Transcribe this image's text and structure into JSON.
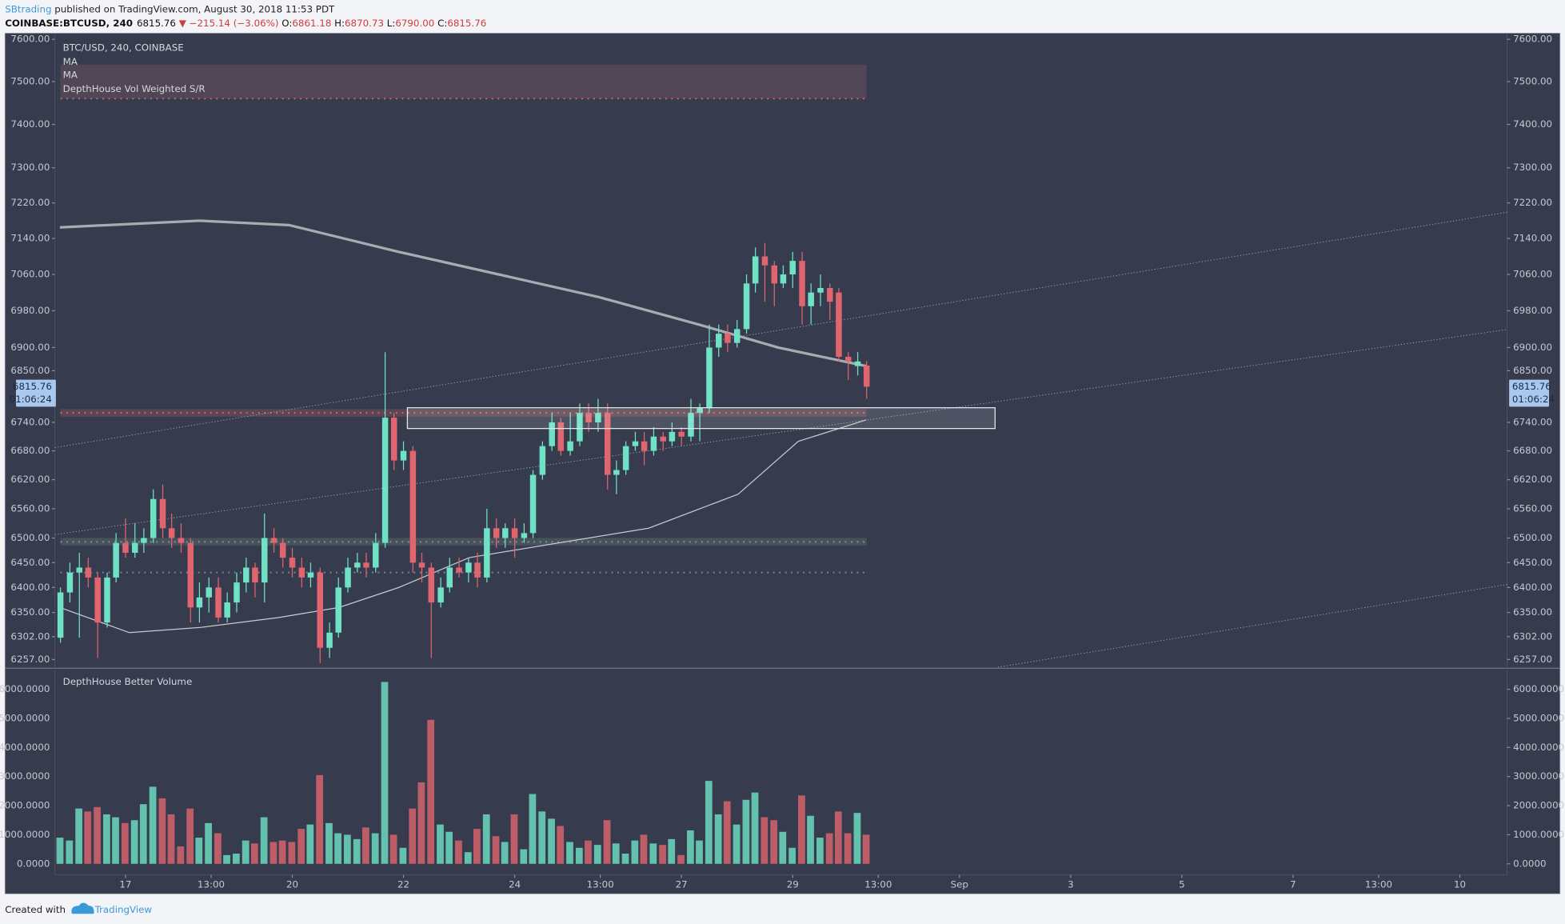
{
  "header": {
    "author": "SBtrading",
    "published": "published on TradingView.com, August 30, 2018 11:53 PDT",
    "symbol": "COINBASE:BTCUSD, 240",
    "last": "6815.76",
    "change": "▼ −215.14 (−3.06%)",
    "ohlc": [
      {
        "label": "O:",
        "value": "6861.18"
      },
      {
        "label": "H:",
        "value": "6870.73"
      },
      {
        "label": "L:",
        "value": "6790.00"
      },
      {
        "label": "C:",
        "value": "6815.76"
      }
    ]
  },
  "chart_data": {
    "type": "candlestick",
    "legend": "BTC/USD, 240, COINBASE",
    "log_scale": true,
    "up_color": "#6fe2c6",
    "down_color": "#e0656f",
    "xlim": [
      15.73,
      41.85
    ],
    "xticks": [
      17,
      {
        "value": 18.54,
        "label": "13:00"
      },
      20,
      22,
      24,
      {
        "value": 25.54,
        "label": "13:00"
      },
      27,
      29,
      {
        "value": 30.54,
        "label": "13:00"
      },
      {
        "value": 32,
        "label": "Sep"
      },
      {
        "value": 34,
        "label": "3"
      },
      {
        "value": 36,
        "label": "5"
      },
      {
        "value": 38,
        "label": "7"
      },
      {
        "value": 39.54,
        "label": "13:00"
      },
      {
        "value": 41,
        "label": "10"
      }
    ],
    "ylim": [
      6242,
      7610
    ],
    "yticks": [
      {
        "value": 7600,
        "label": "7600.00"
      },
      {
        "value": 7500,
        "label": "7500.00"
      },
      {
        "value": 7400,
        "label": "7400.00"
      },
      {
        "value": 7300,
        "label": "7300.00"
      },
      {
        "value": 7220,
        "label": "7220.00"
      },
      {
        "value": 7140,
        "label": "7140.00"
      },
      {
        "value": 7060,
        "label": "7060.00"
      },
      {
        "value": 6980,
        "label": "6980.00"
      },
      {
        "value": 6900,
        "label": "6900.00"
      },
      {
        "value": 6850,
        "label": "6850.00"
      },
      {
        "value": 6740,
        "label": "6740.00"
      },
      {
        "value": 6680,
        "label": "6680.00"
      },
      {
        "value": 6620,
        "label": "6620.00"
      },
      {
        "value": 6560,
        "label": "6560.00"
      },
      {
        "value": 6500,
        "label": "6500.00"
      },
      {
        "value": 6450,
        "label": "6450.00"
      },
      {
        "value": 6400,
        "label": "6400.00"
      },
      {
        "value": 6350,
        "label": "6350.00"
      },
      {
        "value": 6302,
        "label": "6302.00"
      },
      {
        "value": 6257,
        "label": "6257.00"
      }
    ],
    "last_price": {
      "label": "6815.76",
      "countdown": "01:06:24"
    },
    "candles": {
      "x": [
        15.83,
        16,
        16.17,
        16.33,
        16.5,
        16.67,
        16.83,
        17,
        17.17,
        17.33,
        17.5,
        17.67,
        17.83,
        18,
        18.17,
        18.33,
        18.5,
        18.67,
        18.83,
        19,
        19.17,
        19.33,
        19.5,
        19.67,
        19.83,
        20,
        20.17,
        20.33,
        20.5,
        20.67,
        20.83,
        21,
        21.17,
        21.33,
        21.5,
        21.67,
        21.83,
        22,
        22.17,
        22.33,
        22.5,
        22.67,
        22.83,
        23,
        23.17,
        23.33,
        23.5,
        23.67,
        23.83,
        24,
        24.17,
        24.33,
        24.5,
        24.67,
        24.83,
        25,
        25.17,
        25.33,
        25.5,
        25.67,
        25.83,
        26,
        26.17,
        26.33,
        26.5,
        26.67,
        26.83,
        27,
        27.17,
        27.33,
        27.5,
        27.67,
        27.83,
        28,
        28.17,
        28.33,
        28.5,
        28.67,
        28.83,
        29,
        29.17,
        29.33,
        29.5,
        29.67,
        29.83,
        30,
        30.17,
        30.33
      ],
      "open": [
        6300,
        6390,
        6430,
        6440,
        6420,
        6330,
        6420,
        6490,
        6470,
        6490,
        6500,
        6580,
        6520,
        6500,
        6490,
        6360,
        6380,
        6400,
        6340,
        6370,
        6410,
        6440,
        6410,
        6500,
        6490,
        6460,
        6440,
        6420,
        6430,
        6280,
        6310,
        6400,
        6440,
        6450,
        6440,
        6490,
        6750,
        6660,
        6680,
        6450,
        6440,
        6370,
        6400,
        6440,
        6430,
        6450,
        6420,
        6520,
        6500,
        6520,
        6500,
        6510,
        6630,
        6690,
        6740,
        6680,
        6700,
        6760,
        6740,
        6760,
        6630,
        6640,
        6690,
        6700,
        6680,
        6710,
        6700,
        6720,
        6710,
        6760,
        6770,
        6900,
        6930,
        6910,
        6940,
        7040,
        7100,
        7080,
        7040,
        7060,
        7090,
        6990,
        7020,
        7030,
        7020,
        6880,
        6860,
        6861.18
      ],
      "high": [
        6400,
        6450,
        6470,
        6460,
        6430,
        6430,
        6510,
        6540,
        6530,
        6520,
        6600,
        6610,
        6550,
        6530,
        6500,
        6410,
        6420,
        6420,
        6390,
        6430,
        6460,
        6450,
        6550,
        6520,
        6500,
        6480,
        6460,
        6450,
        6440,
        6330,
        6420,
        6460,
        6470,
        6470,
        6510,
        6890,
        6760,
        6700,
        6690,
        6470,
        6450,
        6420,
        6460,
        6460,
        6460,
        6470,
        6560,
        6540,
        6530,
        6540,
        6530,
        6640,
        6700,
        6760,
        6750,
        6760,
        6780,
        6780,
        6790,
        6780,
        6660,
        6700,
        6720,
        6720,
        6730,
        6720,
        6740,
        6730,
        6790,
        6780,
        6950,
        6950,
        6950,
        6960,
        7060,
        7120,
        7130,
        7090,
        7080,
        7110,
        7110,
        7040,
        7060,
        7040,
        7030,
        6890,
        6890,
        6870.73
      ],
      "low": [
        6290,
        6370,
        6300,
        6400,
        6260,
        6320,
        6410,
        6460,
        6460,
        6470,
        6490,
        6500,
        6480,
        6470,
        6330,
        6330,
        6350,
        6330,
        6330,
        6350,
        6390,
        6380,
        6370,
        6470,
        6440,
        6420,
        6400,
        6400,
        6250,
        6260,
        6300,
        6390,
        6430,
        6420,
        6430,
        6480,
        6640,
        6640,
        6430,
        6410,
        6260,
        6360,
        6390,
        6420,
        6410,
        6400,
        6410,
        6480,
        6480,
        6460,
        6490,
        6500,
        6620,
        6680,
        6670,
        6670,
        6690,
        6720,
        6720,
        6600,
        6590,
        6630,
        6680,
        6650,
        6670,
        6680,
        6690,
        6690,
        6700,
        6700,
        6760,
        6880,
        6890,
        6900,
        6930,
        7020,
        7000,
        6990,
        7030,
        7030,
        6950,
        6950,
        6990,
        6960,
        6870,
        6830,
        6840,
        6790
      ],
      "close": [
        6390,
        6430,
        6440,
        6420,
        6330,
        6420,
        6490,
        6470,
        6490,
        6500,
        6580,
        6520,
        6500,
        6490,
        6360,
        6380,
        6400,
        6340,
        6370,
        6410,
        6440,
        6410,
        6500,
        6490,
        6460,
        6440,
        6420,
        6430,
        6280,
        6310,
        6400,
        6440,
        6450,
        6440,
        6490,
        6750,
        6660,
        6680,
        6450,
        6440,
        6370,
        6400,
        6440,
        6430,
        6450,
        6420,
        6520,
        6500,
        6520,
        6500,
        6510,
        6630,
        6690,
        6740,
        6680,
        6700,
        6760,
        6740,
        6760,
        6630,
        6640,
        6690,
        6700,
        6680,
        6710,
        6700,
        6720,
        6710,
        6760,
        6770,
        6900,
        6930,
        6910,
        6940,
        7040,
        7100,
        7080,
        7040,
        7060,
        7090,
        6990,
        7020,
        7030,
        7000,
        6880,
        6870,
        6870,
        6815.76
      ],
      "volume": [
        900,
        800,
        1900,
        1800,
        1950,
        1700,
        1600,
        1400,
        1500,
        2050,
        2650,
        2250,
        1700,
        600,
        1900,
        900,
        1400,
        1050,
        300,
        350,
        800,
        700,
        1600,
        750,
        800,
        750,
        1200,
        1350,
        3050,
        1400,
        1050,
        1000,
        850,
        1250,
        1050,
        6250,
        1000,
        550,
        1900,
        2800,
        4950,
        1350,
        1100,
        800,
        400,
        1200,
        1700,
        950,
        750,
        1700,
        500,
        2400,
        1800,
        1550,
        1300,
        750,
        550,
        800,
        650,
        1500,
        700,
        350,
        800,
        1000,
        700,
        650,
        850,
        300,
        1150,
        800,
        2850,
        1700,
        2150,
        1350,
        2200,
        2450,
        1600,
        1500,
        1100,
        550,
        2350,
        1650,
        900,
        1050,
        1800,
        1050,
        1750,
        1000
      ]
    },
    "ma": [
      {
        "name": "MA",
        "color": "#a9abb2",
        "width": 2.6,
        "x": [
          15.82,
          18.33,
          19.94,
          21.92,
          23.71,
          25.51,
          27.31,
          28.74,
          30.32
        ],
        "values": [
          7165,
          7180,
          7170,
          7110,
          7060,
          7010,
          6950,
          6900,
          6860
        ]
      },
      {
        "name": "MA",
        "color": "#c8cad0",
        "width": 1,
        "x": [
          15.82,
          17.07,
          18.33,
          19.76,
          20.84,
          21.92,
          23.18,
          24.79,
          26.41,
          28.02,
          29.1,
          30.32
        ],
        "values": [
          6360,
          6310,
          6320,
          6340,
          6360,
          6400,
          6460,
          6490,
          6520,
          6590,
          6700,
          6745
        ]
      }
    ],
    "sr_name": "DepthHouse Vol Weighted S/R",
    "sr_zones": [
      {
        "low": 7460,
        "high": 7540,
        "color": "#5a4a5a"
      },
      {
        "low": 6752,
        "high": 6768,
        "color": "#6a4a55"
      },
      {
        "low": 6485,
        "high": 6500,
        "color": "#4f5a60"
      }
    ],
    "sr_lines": [
      {
        "value": 7460,
        "color": "#d86870"
      },
      {
        "value": 6760,
        "color": "#d86870"
      },
      {
        "value": 6492,
        "color": "#7a9a96"
      },
      {
        "value": 6430,
        "color": "#6f8c99"
      }
    ],
    "box": {
      "x": [
        22.07,
        32.64
      ],
      "y": [
        6727,
        6771
      ]
    },
    "trendlines": [
      {
        "x": [
          15.73,
          41.85
        ],
        "y": [
          6687,
          7199
        ]
      },
      {
        "x": [
          15.73,
          41.85
        ],
        "y": [
          6507,
          6939
        ]
      },
      {
        "x": [
          32.69,
          41.85
        ],
        "y": [
          6242,
          6406
        ]
      }
    ],
    "volume_name": "DepthHouse Better Volume",
    "vlim": [
      -380,
      6690
    ],
    "vticks": [
      {
        "value": 6000,
        "label": "6000.0000"
      },
      {
        "value": 5000,
        "label": "5000.0000"
      },
      {
        "value": 4000,
        "label": "4000.0000"
      },
      {
        "value": 3000,
        "label": "3000.0000"
      },
      {
        "value": 2000,
        "label": "2000.0000"
      },
      {
        "value": 1000,
        "label": "1000.0000"
      },
      {
        "value": 0,
        "label": "0.0000"
      }
    ]
  },
  "footer": {
    "created": "Created with",
    "brand": "TradingView"
  }
}
